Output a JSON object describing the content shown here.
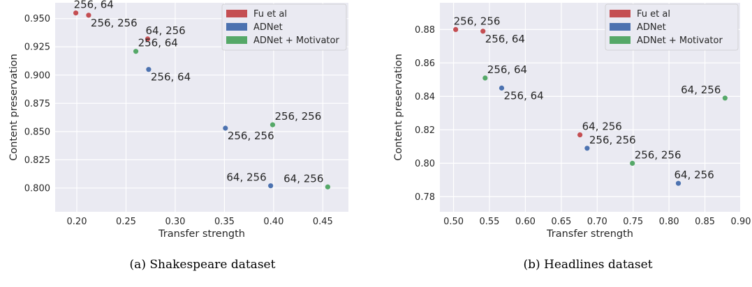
{
  "colors": {
    "Fu et al": "#c44e52",
    "ADNet": "#4c72b0",
    "ADNet + Motivator": "#55a868"
  },
  "captions": [
    "(a) Shakespeare dataset",
    "(b) Headlines dataset"
  ],
  "chart_data": [
    {
      "type": "scatter",
      "title": "",
      "xlabel": "Transfer strength",
      "ylabel": "Content preservation",
      "xlim": [
        0.178,
        0.476
      ],
      "ylim": [
        0.779,
        0.964
      ],
      "xticks": [
        "0.20",
        "0.25",
        "0.30",
        "0.35",
        "0.40",
        "0.45"
      ],
      "yticks": [
        "0.800",
        "0.825",
        "0.850",
        "0.875",
        "0.900",
        "0.925",
        "0.950"
      ],
      "grid": true,
      "legend": "top-right",
      "series": [
        {
          "name": "Fu et al",
          "points": [
            {
              "x": 0.199,
              "y": 0.955,
              "label": "256, 64"
            },
            {
              "x": 0.212,
              "y": 0.953,
              "label": "256, 256"
            },
            {
              "x": 0.272,
              "y": 0.932,
              "label": "64, 256"
            }
          ]
        },
        {
          "name": "ADNet",
          "points": [
            {
              "x": 0.273,
              "y": 0.905,
              "label": "256, 64"
            },
            {
              "x": 0.351,
              "y": 0.853,
              "label": "256, 256"
            },
            {
              "x": 0.397,
              "y": 0.802,
              "label": "64, 256"
            }
          ]
        },
        {
          "name": "ADNet + Motivator",
          "points": [
            {
              "x": 0.26,
              "y": 0.921,
              "label": "256, 64"
            },
            {
              "x": 0.399,
              "y": 0.856,
              "label": "256, 256"
            },
            {
              "x": 0.455,
              "y": 0.801,
              "label": "64, 256"
            }
          ]
        }
      ]
    },
    {
      "type": "scatter",
      "title": "",
      "xlabel": "Transfer strength",
      "ylabel": "Content preservation",
      "xlim": [
        0.481,
        0.899
      ],
      "ylim": [
        0.771,
        0.896
      ],
      "xticks": [
        "0.50",
        "0.55",
        "0.60",
        "0.65",
        "0.70",
        "0.75",
        "0.80",
        "0.85",
        "0.90"
      ],
      "yticks": [
        "0.78",
        "0.80",
        "0.82",
        "0.84",
        "0.86",
        "0.88"
      ],
      "grid": true,
      "legend": "top-right",
      "series": [
        {
          "name": "Fu et al",
          "points": [
            {
              "x": 0.503,
              "y": 0.88,
              "label": "256, 256"
            },
            {
              "x": 0.541,
              "y": 0.879,
              "label": "256, 64"
            },
            {
              "x": 0.676,
              "y": 0.817,
              "label": "64, 256"
            }
          ]
        },
        {
          "name": "ADNet",
          "points": [
            {
              "x": 0.567,
              "y": 0.845,
              "label": "256, 64"
            },
            {
              "x": 0.686,
              "y": 0.809,
              "label": "256, 256"
            },
            {
              "x": 0.813,
              "y": 0.788,
              "label": "64, 256"
            }
          ]
        },
        {
          "name": "ADNet + Motivator",
          "points": [
            {
              "x": 0.544,
              "y": 0.851,
              "label": "256, 64"
            },
            {
              "x": 0.749,
              "y": 0.8,
              "label": "256, 256"
            },
            {
              "x": 0.878,
              "y": 0.839,
              "label": "64, 256"
            }
          ]
        }
      ]
    }
  ]
}
